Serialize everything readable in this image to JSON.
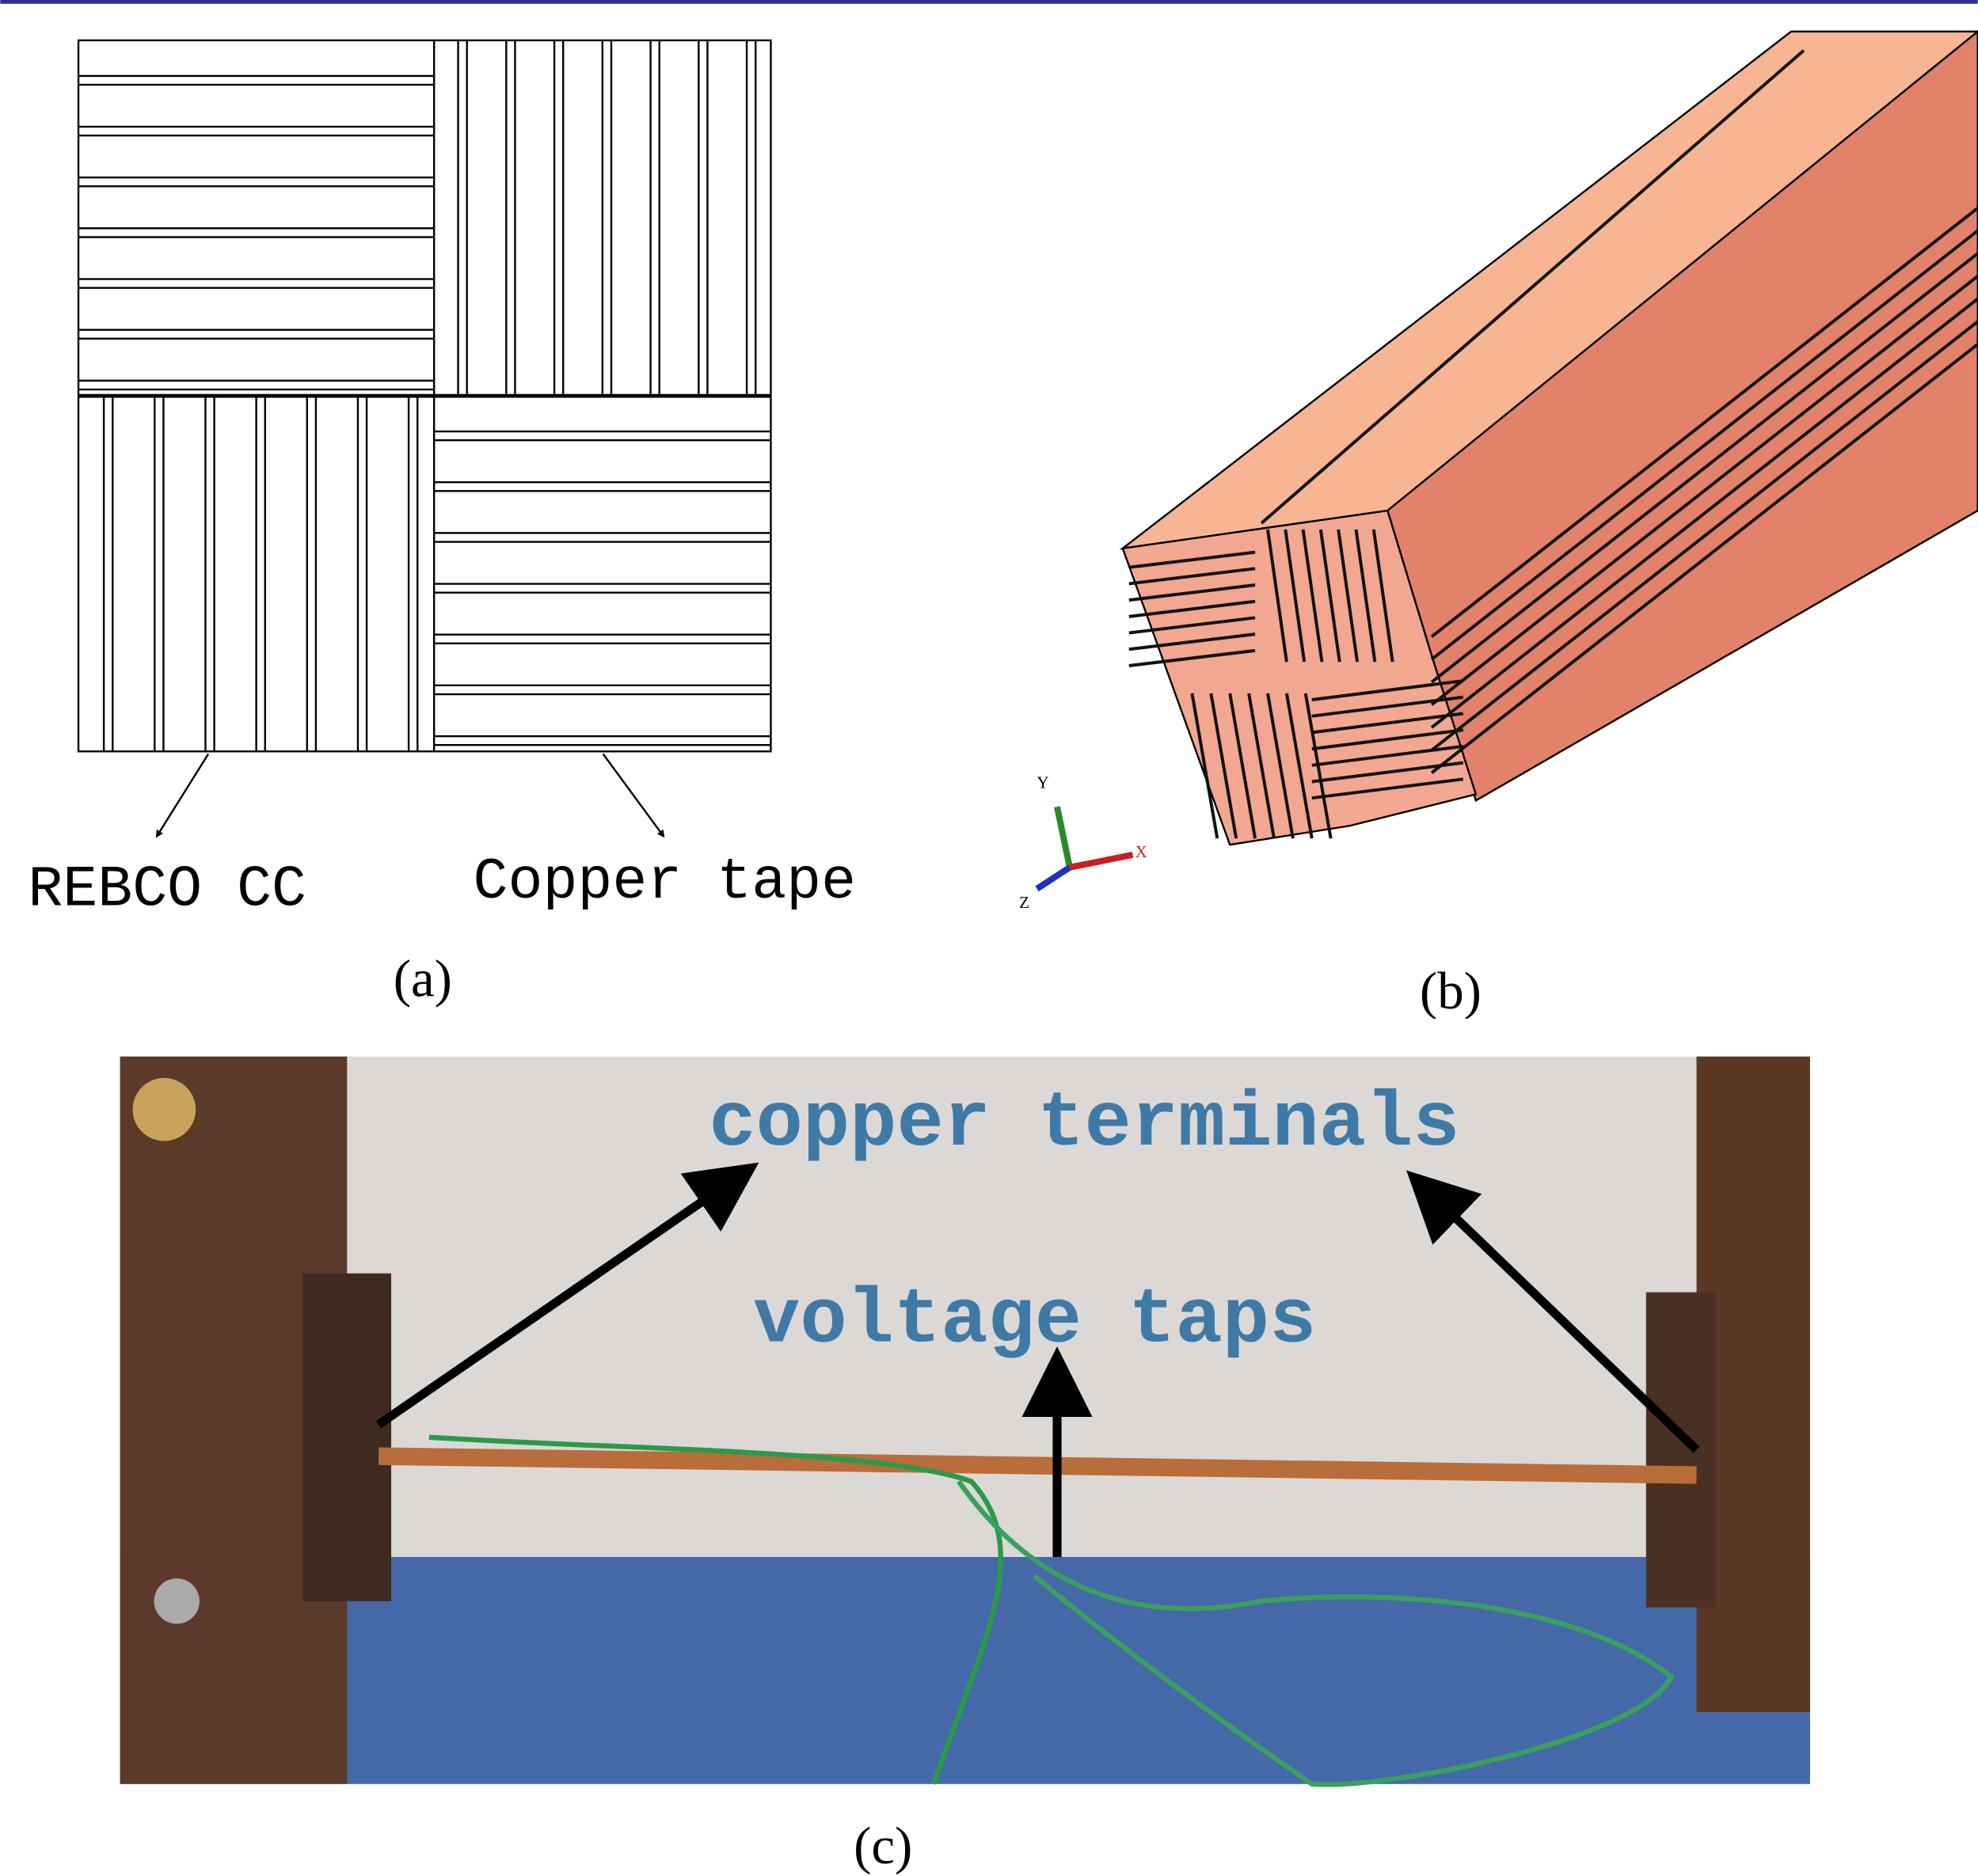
{
  "panel_a": {
    "labels": [
      "REBCO CC",
      "Copper tape"
    ],
    "caption": "(a)"
  },
  "panel_b": {
    "axes": [
      "Y",
      "X",
      "Z"
    ],
    "caption": "(b)"
  },
  "panel_c": {
    "annotations": [
      "copper terminals",
      "voltage taps"
    ],
    "caption": "(c)"
  }
}
